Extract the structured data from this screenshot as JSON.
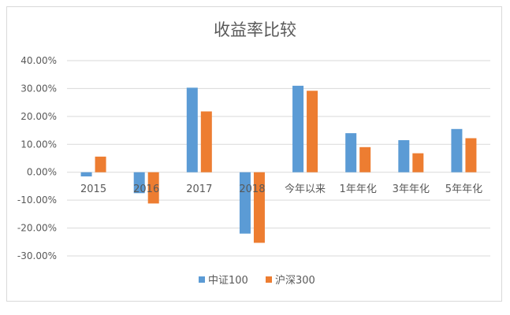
{
  "chart_data": {
    "type": "bar",
    "title": "收益率比较",
    "xlabel": "",
    "ylabel": "",
    "categories": [
      "2015",
      "2016",
      "2017",
      "2018",
      "今年以来",
      "1年年化",
      "3年年化",
      "5年年化"
    ],
    "series": [
      {
        "name": "中证100",
        "color": "#5B9BD5",
        "values": [
          -1.5,
          -7.5,
          30.3,
          -22.0,
          31.0,
          14.0,
          11.5,
          15.5
        ]
      },
      {
        "name": "沪深300",
        "color": "#ED7D31",
        "values": [
          5.6,
          -11.2,
          21.8,
          -25.3,
          29.2,
          9.0,
          6.8,
          12.2
        ]
      }
    ],
    "ylim": [
      -30,
      40
    ],
    "yticks": [
      40,
      30,
      20,
      10,
      0,
      -10,
      -20,
      -30
    ],
    "ytick_labels": [
      "40.00%",
      "30.00%",
      "20.00%",
      "10.00%",
      "0.00%",
      "-10.00%",
      "-20.00%",
      "-30.00%"
    ],
    "grid": true,
    "legend_position": "bottom"
  }
}
